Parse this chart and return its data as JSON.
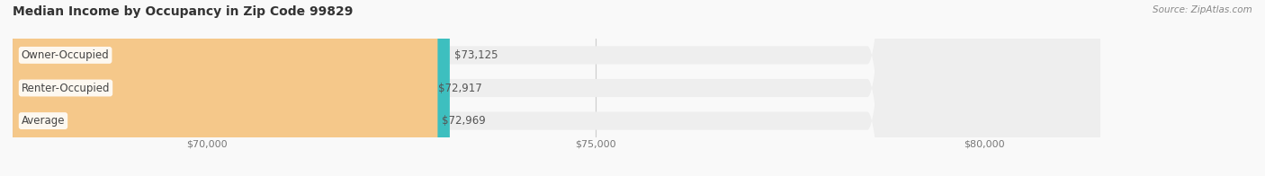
{
  "title": "Median Income by Occupancy in Zip Code 99829",
  "source": "Source: ZipAtlas.com",
  "categories": [
    "Owner-Occupied",
    "Renter-Occupied",
    "Average"
  ],
  "values": [
    73125,
    72917,
    72969
  ],
  "bar_colors": [
    "#3dbfbf",
    "#c8a8d8",
    "#f5c88a"
  ],
  "bar_bg_color": "#eeeeee",
  "value_labels": [
    "$73,125",
    "$72,917",
    "$72,969"
  ],
  "xlim_min": 67500,
  "xlim_max": 81500,
  "xticks": [
    70000,
    75000,
    80000
  ],
  "xtick_labels": [
    "$70,000",
    "$75,000",
    "$80,000"
  ],
  "background_color": "#f9f9f9",
  "bar_height": 0.55,
  "title_fontsize": 10,
  "label_fontsize": 8.5,
  "tick_fontsize": 8,
  "source_fontsize": 7.5
}
